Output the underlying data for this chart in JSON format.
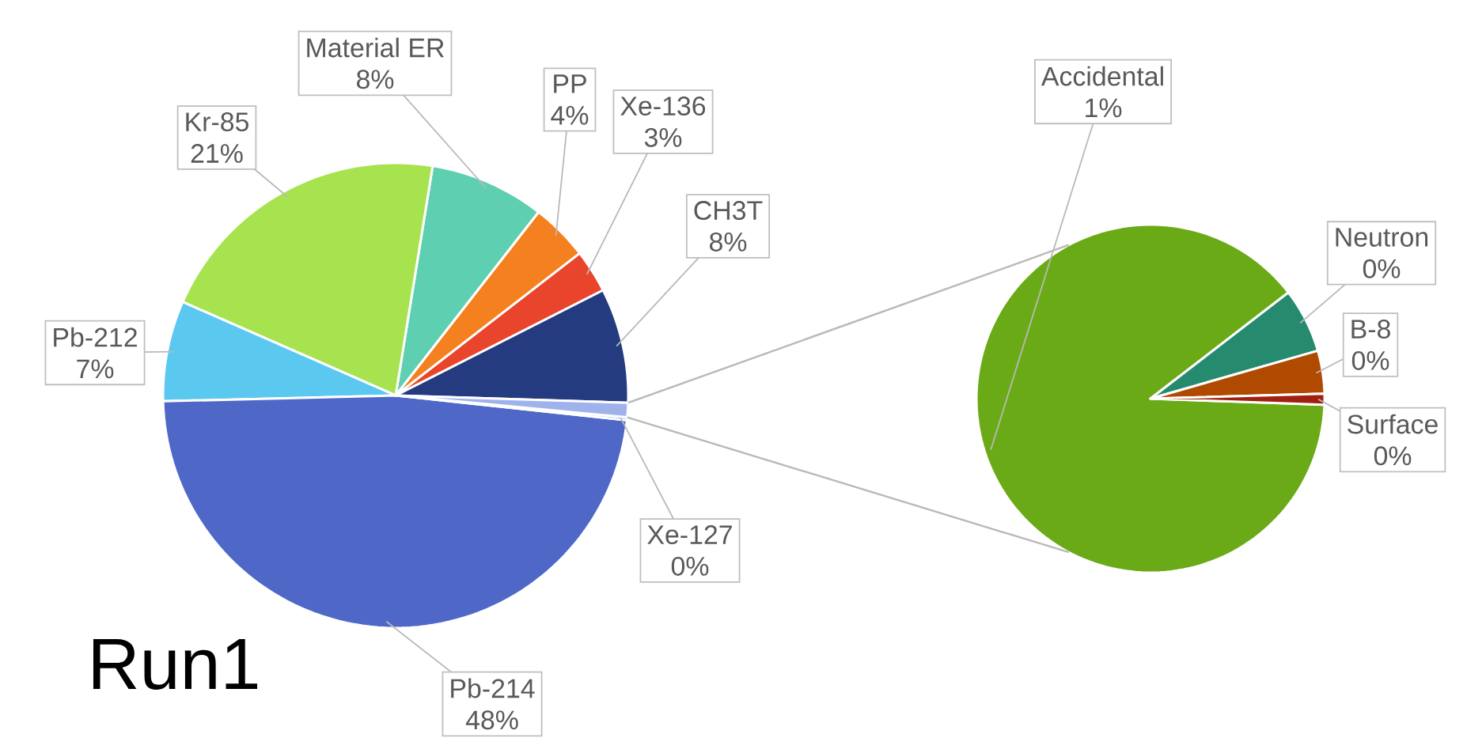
{
  "chart_data": [
    {
      "type": "pie",
      "title": "Run1",
      "categories": [
        "CH3T",
        "Xe-136",
        "PP",
        "Material ER",
        "Kr-85",
        "Pb-212",
        "Pb-214",
        "Xe-127",
        null
      ],
      "values": [
        8,
        3,
        4,
        8,
        21,
        7,
        48,
        0.2,
        1
      ],
      "value_labels": [
        "8%",
        "3%",
        "4%",
        "8%",
        "21%",
        "7%",
        "48%",
        "0%",
        null
      ],
      "colors": [
        "#253b80",
        "#e8452c",
        "#f5801f",
        "#5ecfb0",
        "#a6e34f",
        "#5bc8f0",
        "#4f68c8",
        "#6f8ae0",
        "#9fb2ec"
      ]
    },
    {
      "type": "pie",
      "categories": [
        "Accidental",
        "Neutron",
        "B-8",
        "Surface"
      ],
      "values": [
        0.89,
        0.06,
        0.04,
        0.01
      ],
      "value_labels": [
        "1%",
        "0%",
        "0%",
        "0%"
      ],
      "colors": [
        "#6aaa17",
        "#268a6e",
        "#b04a00",
        "#a02010"
      ]
    }
  ]
}
